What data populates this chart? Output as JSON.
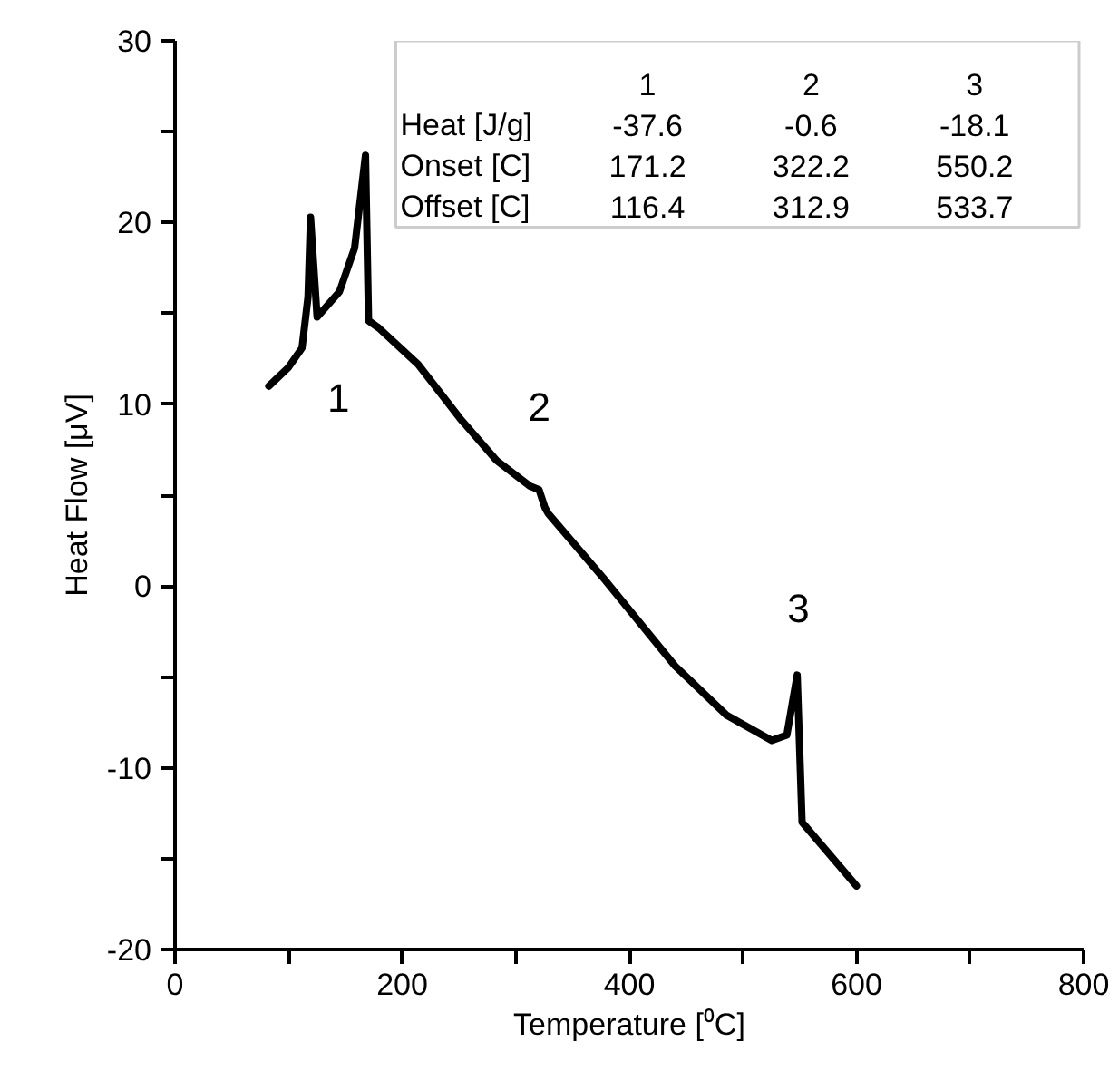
{
  "chart_data": {
    "type": "line",
    "xlabel": "Temperature [⁰C]",
    "ylabel": "Heat Flow [μV]",
    "xlim": [
      0,
      800
    ],
    "ylim": [
      -20,
      30
    ],
    "xticks": [
      0,
      {
        "value": 100,
        "label": null
      },
      200,
      {
        "value": 300,
        "label": null
      },
      400,
      {
        "value": 500,
        "label": null
      },
      600,
      {
        "value": 700,
        "label": null
      },
      800
    ],
    "yticks": [
      -20,
      {
        "value": -15,
        "label": null
      },
      -10,
      {
        "value": -5,
        "label": null
      },
      0,
      {
        "value": 5,
        "label": null
      },
      10,
      {
        "value": 15,
        "label": null
      },
      20,
      {
        "value": 25,
        "label": null
      },
      30
    ],
    "grid": false,
    "marker": "none",
    "line_style": "solid",
    "series": [
      {
        "color": "#000000",
        "x": [
          82.6,
          99.5,
          111.8,
          117.1,
          119.3,
          125.1,
          144.8,
          158.1,
          167.7,
          170.4,
          179.4,
          214,
          251.2,
          283.2,
          312.5,
          320.5,
          325.8,
          328.5,
          379,
          440.3,
          485.5,
          525.4,
          538.7,
          547.8,
          552.1,
          600
        ],
        "values": [
          11.0,
          12.0,
          13.1,
          15.9,
          20.3,
          14.8,
          16.2,
          18.6,
          23.7,
          14.6,
          14.2,
          12.2,
          9.2,
          6.9,
          5.5,
          5.3,
          4.3,
          4.0,
          0.3,
          -4.4,
          -7.1,
          -8.5,
          -8.2,
          -4.9,
          -13.0,
          -16.5
        ]
      }
    ],
    "annotations": [
      "1",
      "2",
      "3",
      "1",
      "2",
      "3",
      "Heat [J/g]",
      "-37.6",
      "-0.6",
      "-18.1",
      "Onset [C]",
      "171.2",
      "322.2",
      "550.2",
      "Offset [C]",
      "116.4",
      "312.9",
      "533.7"
    ]
  }
}
